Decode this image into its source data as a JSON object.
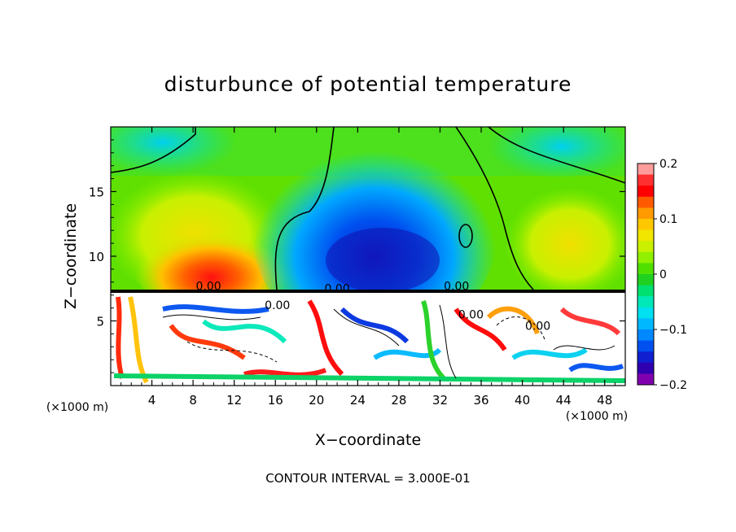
{
  "chart_data": {
    "type": "heatmap",
    "title": "disturbunce of potential temperature",
    "xlabel": "X−coordinate",
    "ylabel": "Z−coordinate",
    "x_unit_left": "(×1000 m)",
    "x_unit_right": "(×1000 m)",
    "xlim": [
      0,
      50
    ],
    "ylim": [
      0,
      20
    ],
    "x_ticks": [
      4,
      8,
      12,
      16,
      20,
      24,
      28,
      32,
      36,
      40,
      44,
      48
    ],
    "x_tick_labels": [
      "4",
      "8",
      "12",
      "16",
      "20",
      "24",
      "28",
      "32",
      "36",
      "40",
      "44",
      "48"
    ],
    "y_ticks": [
      5,
      10,
      15
    ],
    "y_tick_labels": [
      "5",
      "10",
      "15"
    ],
    "colorbar": {
      "range": [
        -0.2,
        0.2
      ],
      "tick_labels": [
        "0.2",
        "0.1",
        "0",
        "−0.1",
        "−0.2"
      ],
      "tick_values": [
        0.2,
        0.1,
        0,
        -0.1,
        -0.2
      ],
      "colors": [
        "#ff9c9c",
        "#ff3030",
        "#ff0000",
        "#ff5a00",
        "#ff9a00",
        "#ffc800",
        "#f0e600",
        "#c8f000",
        "#90f000",
        "#50e000",
        "#20d020",
        "#00e070",
        "#00e8b8",
        "#00e0f0",
        "#00b8ff",
        "#0088ff",
        "#0050f0",
        "#1020d0",
        "#3000b0",
        "#8000b0"
      ]
    },
    "contour_labels": [
      "0.00",
      "0.00",
      "0.00",
      "0.00",
      "0.00",
      "0.00"
    ],
    "footer": "CONTOUR INTERVAL = 3.000E-01"
  }
}
